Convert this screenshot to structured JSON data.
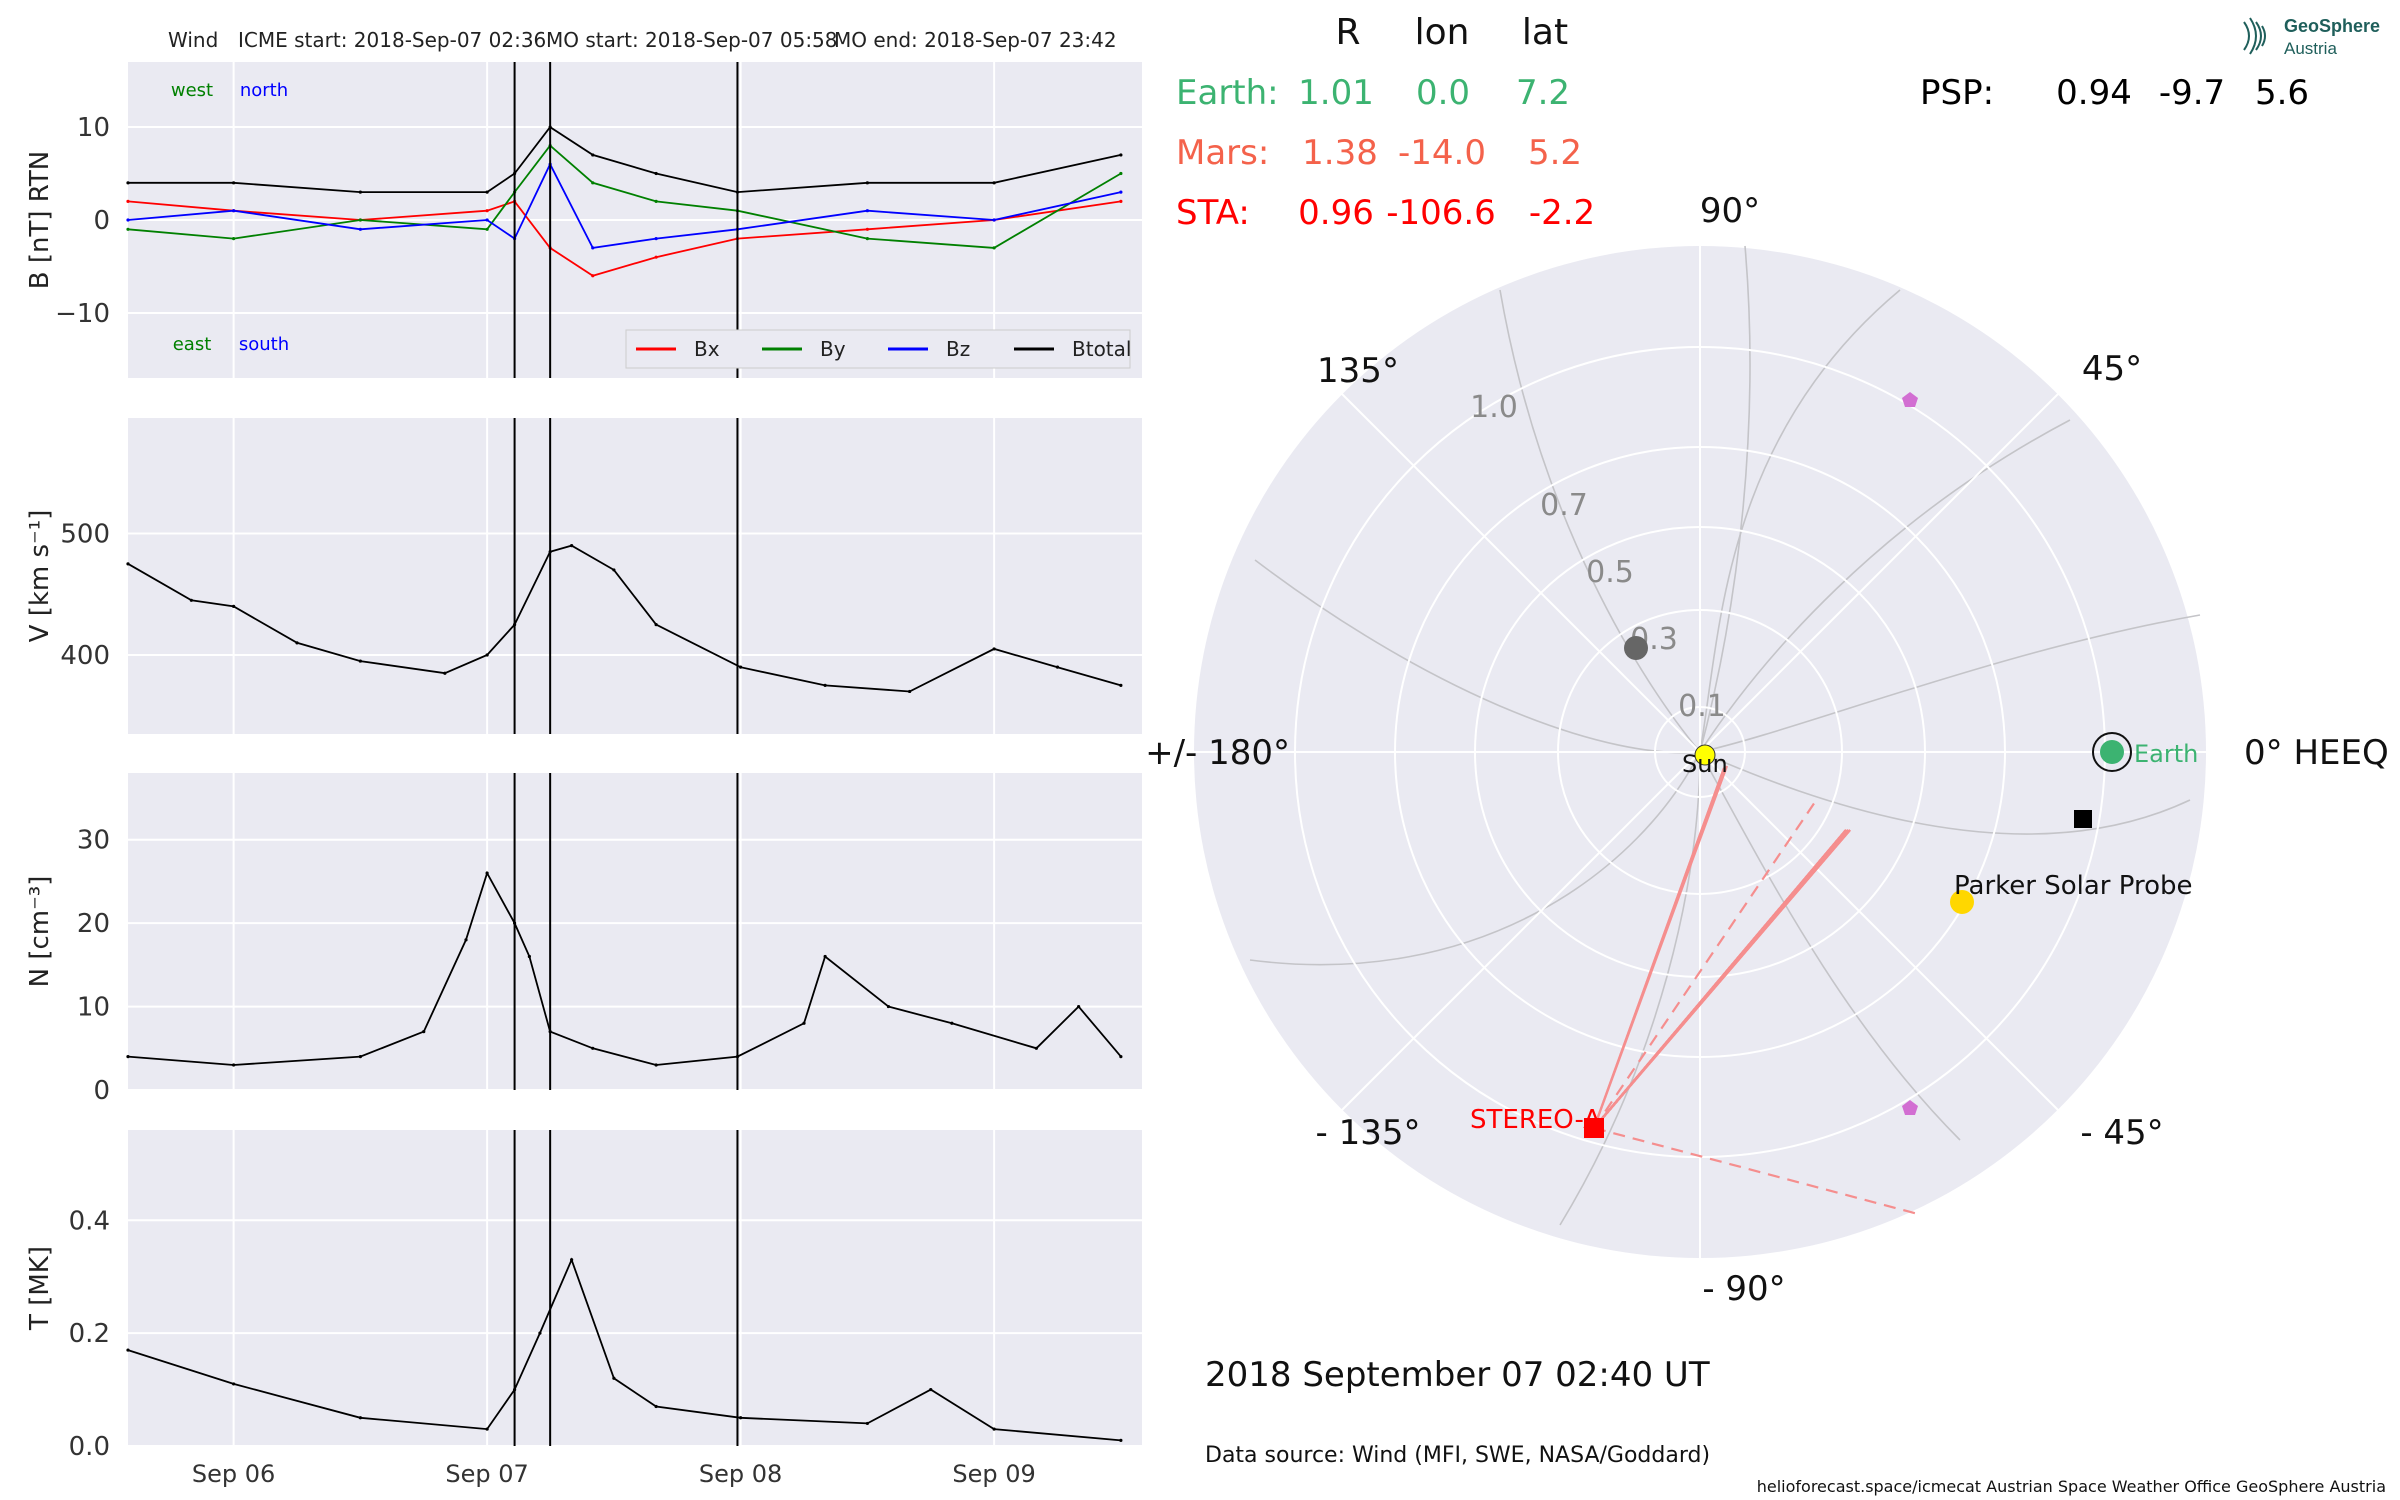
{
  "header": {
    "spacecraft": "Wind",
    "icme_start": "ICME start: 2018-Sep-07 02:36",
    "mo_start": "MO start: 2018-Sep-07 05:58",
    "mo_end": "MO end: 2018-Sep-07 23:42"
  },
  "logo": {
    "line1": "GeoSphere",
    "line2": "Austria"
  },
  "positions": {
    "columns": [
      "R",
      "lon",
      "lat"
    ],
    "rows": [
      {
        "name": "Earth:",
        "R": "1.01",
        "lon": "0.0",
        "lat": "7.2",
        "color": "#3cb371"
      },
      {
        "name": "Mars:",
        "R": "1.38",
        "lon": "-14.0",
        "lat": "5.2",
        "color": "#f4624b"
      },
      {
        "name": "STA:",
        "R": "0.96",
        "lon": "-106.6",
        "lat": "-2.2",
        "color": "#ff0000"
      }
    ],
    "psp": {
      "name": "PSP:",
      "R": "0.94",
      "lon": "-9.7",
      "lat": "5.6",
      "color": "#000000"
    }
  },
  "polar": {
    "angle_labels": {
      "a90": "90°",
      "a45": "45°",
      "a0": "0° HEEQ",
      "am45": "- 45°",
      "am90": "- 90°",
      "am135": "- 135°",
      "a180": "+/- 180°",
      "a135": "135°"
    },
    "radial_labels": [
      "1.0",
      "0.7",
      "0.5",
      "0.3",
      "0.1"
    ],
    "bodies": {
      "sun": "Sun",
      "earth": "Earth",
      "psp": "Parker Solar Probe",
      "sta": "STEREO-A"
    },
    "colors": {
      "bg": "#eaeaf2",
      "earth": "#3cb371",
      "sun": "#ffff00",
      "psp": "#ffd700",
      "sta": "#ff0000",
      "mars": "#666666",
      "pent": "#d26ed2"
    }
  },
  "footer": {
    "date": "2018 September 07  02:40 UT",
    "source": "Data source: Wind (MFI, SWE, NASA/Goddard)",
    "credits": "helioforecast.space/icmecat   Austrian Space Weather Office   GeoSphere Austria"
  },
  "chart_data": [
    {
      "type": "line",
      "ylabel": "B [nT] RTN",
      "ylim": [
        -17,
        17
      ],
      "yticks": [
        -10,
        0,
        10
      ],
      "ytick_labels": [
        "−10",
        "0",
        "10"
      ],
      "corner_labels": {
        "west": "west",
        "north": "north",
        "east": "east",
        "south": "south"
      },
      "legend": "bottom-right",
      "x_time": [
        "2018-09-05T14:00",
        "2018-09-06T00:00",
        "2018-09-06T12:00",
        "2018-09-07T00:00",
        "2018-09-07T02:36",
        "2018-09-07T05:58",
        "2018-09-07T10:00",
        "2018-09-07T16:00",
        "2018-09-07T23:42",
        "2018-09-08T12:00",
        "2018-09-09T00:00",
        "2018-09-09T12:00"
      ],
      "series": [
        {
          "name": "Bx",
          "color": "#ff0000",
          "values": [
            2,
            1,
            0,
            1,
            2,
            -3,
            -6,
            -4,
            -2,
            -1,
            0,
            2
          ]
        },
        {
          "name": "By",
          "color": "#008000",
          "values": [
            -1,
            -2,
            0,
            -1,
            3,
            8,
            4,
            2,
            1,
            -2,
            -3,
            5
          ]
        },
        {
          "name": "Bz",
          "color": "#0000ff",
          "values": [
            0,
            1,
            -1,
            0,
            -2,
            6,
            -3,
            -2,
            -1,
            1,
            0,
            3
          ]
        },
        {
          "name": "Btotal",
          "color": "#000000",
          "values": [
            4,
            4,
            3,
            3,
            5,
            10,
            7,
            5,
            3,
            4,
            4,
            7
          ]
        }
      ],
      "events": [
        "2018-09-07T02:36",
        "2018-09-07T05:58",
        "2018-09-07T23:42"
      ]
    },
    {
      "type": "line",
      "ylabel": "V [km s⁻¹]",
      "ylim": [
        335,
        595
      ],
      "yticks": [
        400,
        500
      ],
      "ytick_labels": [
        "400",
        "500"
      ],
      "x_time": [
        "2018-09-05T14:00",
        "2018-09-05T20:00",
        "2018-09-06T00:00",
        "2018-09-06T06:00",
        "2018-09-06T12:00",
        "2018-09-06T20:00",
        "2018-09-07T00:00",
        "2018-09-07T02:36",
        "2018-09-07T05:58",
        "2018-09-07T08:00",
        "2018-09-07T12:00",
        "2018-09-07T16:00",
        "2018-09-08T00:00",
        "2018-09-08T08:00",
        "2018-09-08T16:00",
        "2018-09-09T00:00",
        "2018-09-09T06:00",
        "2018-09-09T12:00"
      ],
      "series": [
        {
          "name": "V",
          "color": "#000000",
          "values": [
            475,
            445,
            440,
            410,
            395,
            385,
            400,
            425,
            485,
            490,
            470,
            425,
            390,
            375,
            370,
            405,
            390,
            375
          ]
        }
      ],
      "events": [
        "2018-09-07T02:36",
        "2018-09-07T05:58",
        "2018-09-07T23:42"
      ]
    },
    {
      "type": "line",
      "ylabel": "N [cm⁻³]",
      "ylim": [
        0,
        38
      ],
      "yticks": [
        0,
        10,
        20,
        30
      ],
      "ytick_labels": [
        "0",
        "10",
        "20",
        "30"
      ],
      "x_time": [
        "2018-09-05T14:00",
        "2018-09-06T00:00",
        "2018-09-06T12:00",
        "2018-09-06T18:00",
        "2018-09-06T22:00",
        "2018-09-07T00:00",
        "2018-09-07T02:36",
        "2018-09-07T04:00",
        "2018-09-07T05:58",
        "2018-09-07T10:00",
        "2018-09-07T16:00",
        "2018-09-07T23:42",
        "2018-09-08T06:00",
        "2018-09-08T08:00",
        "2018-09-08T14:00",
        "2018-09-08T20:00",
        "2018-09-09T04:00",
        "2018-09-09T08:00",
        "2018-09-09T12:00"
      ],
      "series": [
        {
          "name": "N",
          "color": "#000000",
          "values": [
            4,
            3,
            4,
            7,
            18,
            26,
            20,
            16,
            7,
            5,
            3,
            4,
            8,
            16,
            10,
            8,
            5,
            10,
            4
          ]
        }
      ],
      "events": [
        "2018-09-07T02:36",
        "2018-09-07T05:58",
        "2018-09-07T23:42"
      ]
    },
    {
      "type": "line",
      "ylabel": "T [MK]",
      "ylim": [
        0,
        0.56
      ],
      "yticks": [
        0,
        0.2,
        0.4
      ],
      "ytick_labels": [
        "0.0",
        "0.2",
        "0.4"
      ],
      "xtick_labels": [
        "Sep 06",
        "Sep 07",
        "Sep 08",
        "Sep 09"
      ],
      "x_time": [
        "2018-09-05T14:00",
        "2018-09-06T00:00",
        "2018-09-06T12:00",
        "2018-09-07T00:00",
        "2018-09-07T02:36",
        "2018-09-07T05:00",
        "2018-09-07T08:00",
        "2018-09-07T12:00",
        "2018-09-07T16:00",
        "2018-09-08T00:00",
        "2018-09-08T12:00",
        "2018-09-08T18:00",
        "2018-09-09T00:00",
        "2018-09-09T12:00"
      ],
      "series": [
        {
          "name": "T",
          "color": "#000000",
          "values": [
            0.17,
            0.11,
            0.05,
            0.03,
            0.1,
            0.2,
            0.33,
            0.12,
            0.07,
            0.05,
            0.04,
            0.1,
            0.03,
            0.01
          ]
        }
      ],
      "events": [
        "2018-09-07T02:36",
        "2018-09-07T05:58",
        "2018-09-07T23:42"
      ]
    }
  ]
}
